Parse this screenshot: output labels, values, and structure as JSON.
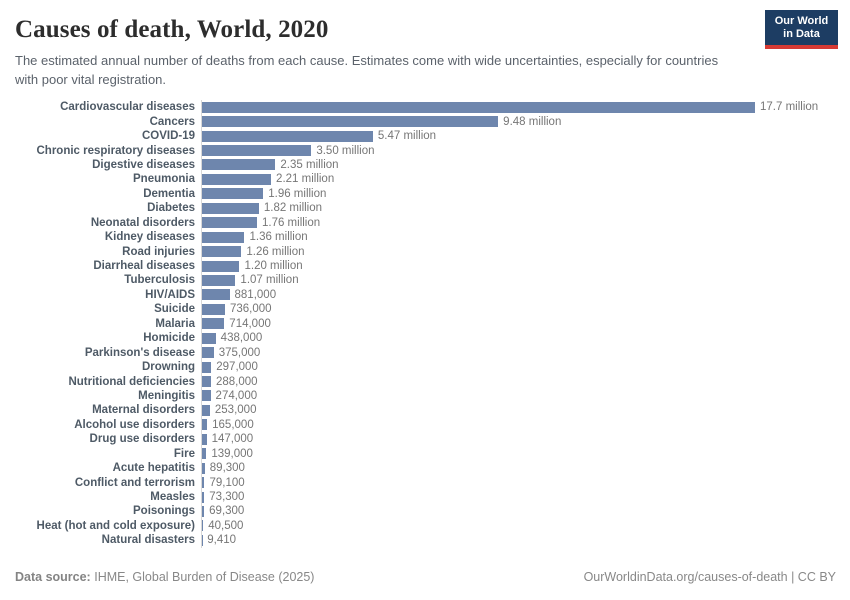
{
  "header": {
    "title": "Causes of death, World, 2020",
    "subtitle": "The estimated annual number of deaths from each cause. Estimates come with wide uncertainties, especially for countries with poor vital registration.",
    "logo": {
      "line1": "Our World",
      "line2": "in Data",
      "bg_color": "#1d3d63",
      "accent_color": "#d73a34"
    }
  },
  "chart_data": {
    "type": "bar",
    "orientation": "horizontal",
    "title": "Causes of death, World, 2020",
    "xlabel": "",
    "ylabel": "",
    "grid": false,
    "legend": "none",
    "xlim": [
      0,
      17700000
    ],
    "bar_color": "#6e86ad",
    "categories": [
      "Cardiovascular diseases",
      "Cancers",
      "COVID-19",
      "Chronic respiratory diseases",
      "Digestive diseases",
      "Pneumonia",
      "Dementia",
      "Diabetes",
      "Neonatal disorders",
      "Kidney diseases",
      "Road injuries",
      "Diarrheal diseases",
      "Tuberculosis",
      "HIV/AIDS",
      "Suicide",
      "Malaria",
      "Homicide",
      "Parkinson's disease",
      "Drowning",
      "Nutritional deficiencies",
      "Meningitis",
      "Maternal disorders",
      "Alcohol use disorders",
      "Drug use disorders",
      "Fire",
      "Acute hepatitis",
      "Conflict and terrorism",
      "Measles",
      "Poisonings",
      "Heat (hot and cold exposure)",
      "Natural disasters"
    ],
    "values": [
      17700000,
      9480000,
      5470000,
      3500000,
      2350000,
      2210000,
      1960000,
      1820000,
      1760000,
      1360000,
      1260000,
      1200000,
      1070000,
      881000,
      736000,
      714000,
      438000,
      375000,
      297000,
      288000,
      274000,
      253000,
      165000,
      147000,
      139000,
      89300,
      79100,
      73300,
      69300,
      40500,
      9410
    ],
    "value_labels": [
      "17.7 million",
      "9.48 million",
      "5.47 million",
      "3.50 million",
      "2.35 million",
      "2.21 million",
      "1.96 million",
      "1.82 million",
      "1.76 million",
      "1.36 million",
      "1.26 million",
      "1.20 million",
      "1.07 million",
      "881,000",
      "736,000",
      "714,000",
      "438,000",
      "375,000",
      "297,000",
      "288,000",
      "274,000",
      "253,000",
      "165,000",
      "147,000",
      "139,000",
      "89,300",
      "79,100",
      "73,300",
      "69,300",
      "40,500",
      "9,410"
    ]
  },
  "footer": {
    "source_label": "Data source:",
    "source_text": "IHME, Global Burden of Disease (2025)",
    "credit": "OurWorldinData.org/causes-of-death | CC BY"
  }
}
